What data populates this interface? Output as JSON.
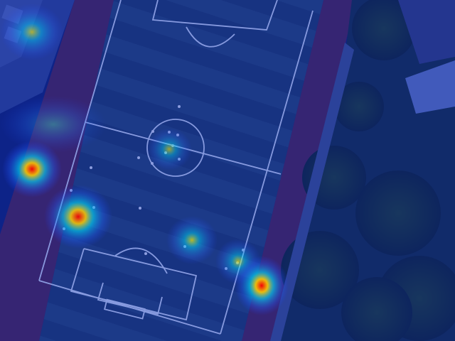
{
  "image": {
    "description_tag": "aerial-soccer-field-heatmap-overlay",
    "colormap": [
      "#0000b4",
      "#00c8ff",
      "#ffff00",
      "#ff0000"
    ],
    "overlay_tint": "#1030c0"
  },
  "heatmap": {
    "hotspots": [
      {
        "name": "hotspot-building-top-left",
        "intensity": 0.55
      },
      {
        "name": "hotspot-field-left-edge",
        "intensity": 0.35
      },
      {
        "name": "hotspot-track-left",
        "intensity": 0.95
      },
      {
        "name": "hotspot-left-wing",
        "intensity": 0.9
      },
      {
        "name": "hotspot-centre-circle",
        "intensity": 0.45
      },
      {
        "name": "hotspot-penalty-area",
        "intensity": 0.7
      },
      {
        "name": "hotspot-goal-line-right",
        "intensity": 0.6
      },
      {
        "name": "hotspot-track-right",
        "intensity": 1.0
      }
    ]
  }
}
